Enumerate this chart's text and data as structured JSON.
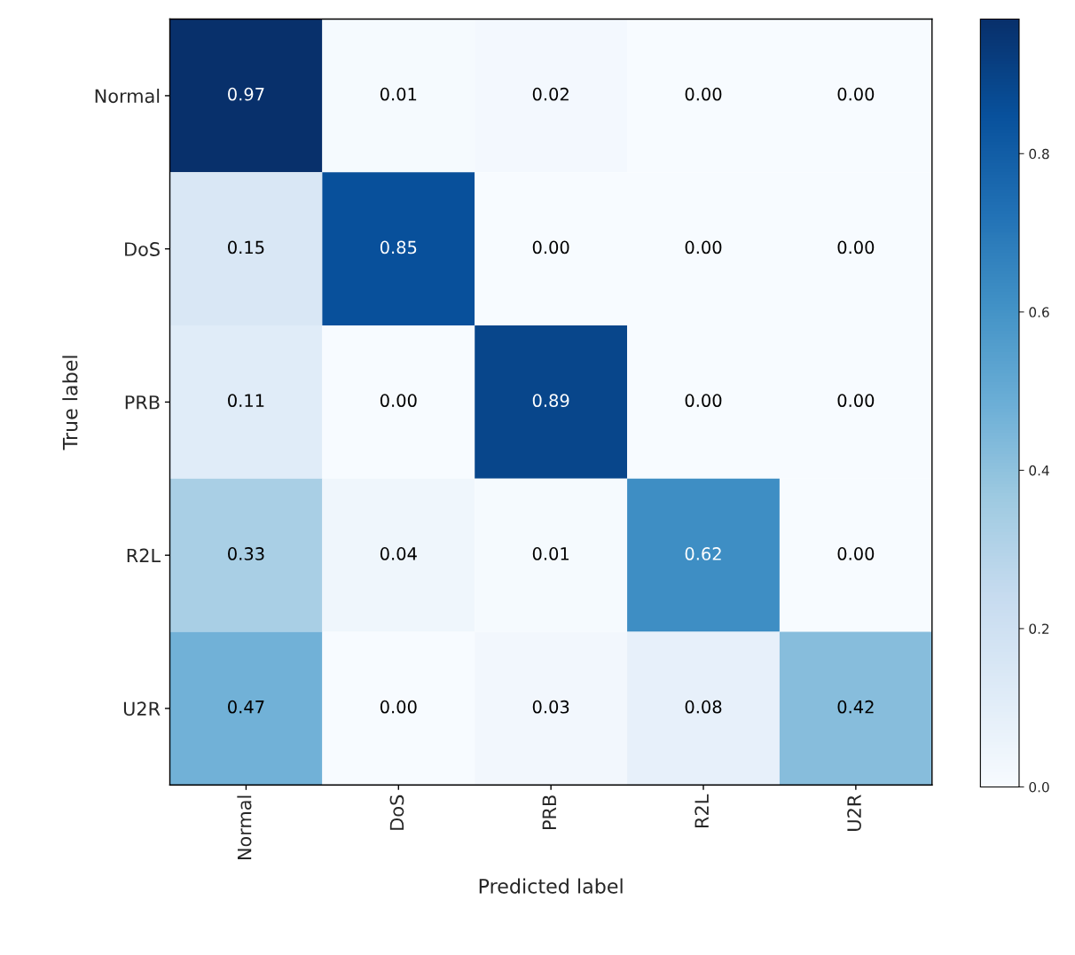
{
  "chart_data": {
    "type": "heatmap",
    "xlabel": "Predicted label",
    "ylabel": "True label",
    "categories": [
      "Normal",
      "DoS",
      "PRB",
      "R2L",
      "U2R"
    ],
    "y_categories": [
      "Normal",
      "DoS",
      "PRB",
      "R2L",
      "U2R"
    ],
    "cells": [
      [
        0.97,
        0.01,
        0.02,
        0.0,
        0.0
      ],
      [
        0.15,
        0.85,
        0.0,
        0.0,
        0.0
      ],
      [
        0.11,
        0.0,
        0.89,
        0.0,
        0.0
      ],
      [
        0.33,
        0.04,
        0.01,
        0.62,
        0.0
      ],
      [
        0.47,
        0.0,
        0.03,
        0.08,
        0.42
      ]
    ],
    "cell_labels": [
      [
        "0.97",
        "0.01",
        "0.02",
        "0.00",
        "0.00"
      ],
      [
        "0.15",
        "0.85",
        "0.00",
        "0.00",
        "0.00"
      ],
      [
        "0.11",
        "0.00",
        "0.89",
        "0.00",
        "0.00"
      ],
      [
        "0.33",
        "0.04",
        "0.01",
        "0.62",
        "0.00"
      ],
      [
        "0.47",
        "0.00",
        "0.03",
        "0.08",
        "0.42"
      ]
    ],
    "clim": [
      0.0,
      0.97
    ],
    "cticks": [
      {
        "value": 0.0,
        "label": "0.0"
      },
      {
        "value": 0.2,
        "label": "0.2"
      },
      {
        "value": 0.4,
        "label": "0.4"
      },
      {
        "value": 0.6,
        "label": "0.6"
      },
      {
        "value": 0.8,
        "label": "0.8"
      }
    ]
  }
}
